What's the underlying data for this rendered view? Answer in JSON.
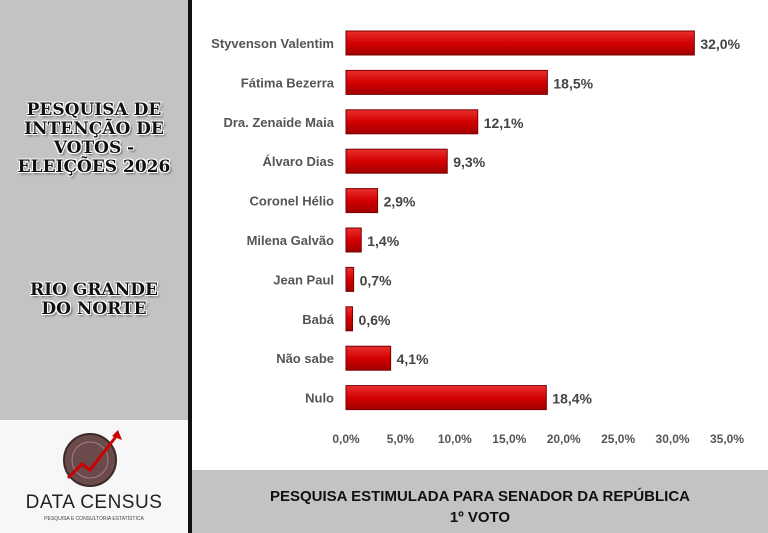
{
  "sidebar": {
    "title_lines": [
      "PESQUISA DE",
      "INTENÇÃO DE",
      "VOTOS -",
      "ELEIÇÕES 2026"
    ],
    "region_lines": [
      "RIO GRANDE",
      "DO NORTE"
    ],
    "logo": {
      "name": "DATA CENSUS",
      "tagline": "PESQUISA E CONSULTORIA ESTATÍSTICA"
    }
  },
  "footer": {
    "line1": "PESQUISA ESTIMULADA PARA SENADOR DA REPÚBLICA",
    "line2": "1º VOTO"
  },
  "colors": {
    "bar": "#d40000",
    "bar_edge": "#7a0000"
  },
  "chart_data": {
    "type": "bar",
    "orientation": "horizontal",
    "title": "PESQUISA ESTIMULADA PARA SENADOR DA REPÚBLICA - 1º VOTO",
    "categories": [
      "Styvenson Valentim",
      "Fátima Bezerra",
      "Dra. Zenaide Maia",
      "Álvaro Dias",
      "Coronel Hélio",
      "Milena Galvão",
      "Jean Paul",
      "Babá",
      "Não sabe",
      "Nulo"
    ],
    "values": [
      32.0,
      18.5,
      12.1,
      9.3,
      2.9,
      1.4,
      0.7,
      0.6,
      4.1,
      18.4
    ],
    "labels": [
      "32,0%",
      "18,5%",
      "12,1%",
      "9,3%",
      "2,9%",
      "1,4%",
      "0,7%",
      "0,6%",
      "4,1%",
      "18,4%"
    ],
    "xlim": [
      0,
      35
    ],
    "xticks": [
      "0,0%",
      "5,0%",
      "10,0%",
      "15,0%",
      "20,0%",
      "25,0%",
      "30,0%",
      "35,0%"
    ],
    "grid": false,
    "xlabel": "",
    "ylabel": ""
  }
}
